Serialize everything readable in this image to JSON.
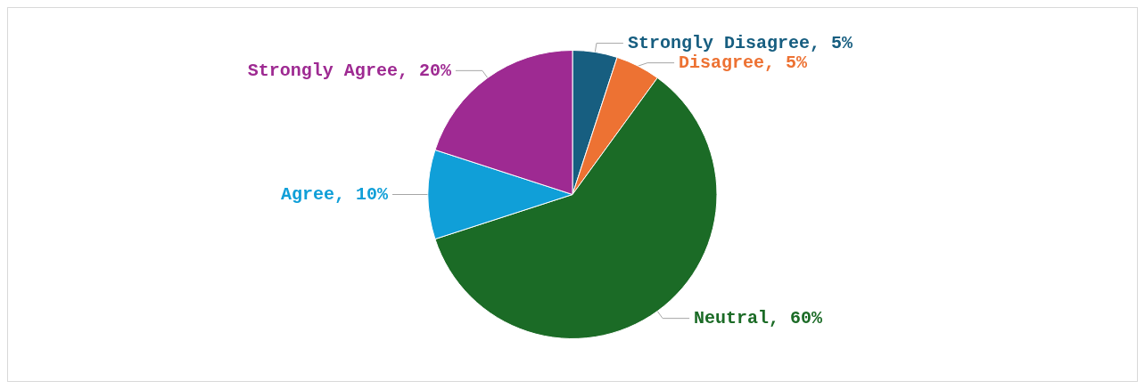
{
  "chart_data": {
    "type": "pie",
    "categories": [
      "Strongly Disagree",
      "Disagree",
      "Neutral",
      "Agree",
      "Strongly Agree"
    ],
    "values": [
      5,
      5,
      60,
      10,
      20
    ],
    "colors": [
      "#175e80",
      "#ed7233",
      "#1b6b26",
      "#109fd8",
      "#9e2a92"
    ],
    "value_labels": [
      "5%",
      "5%",
      "60%",
      "10%",
      "20%"
    ],
    "legend": false
  }
}
